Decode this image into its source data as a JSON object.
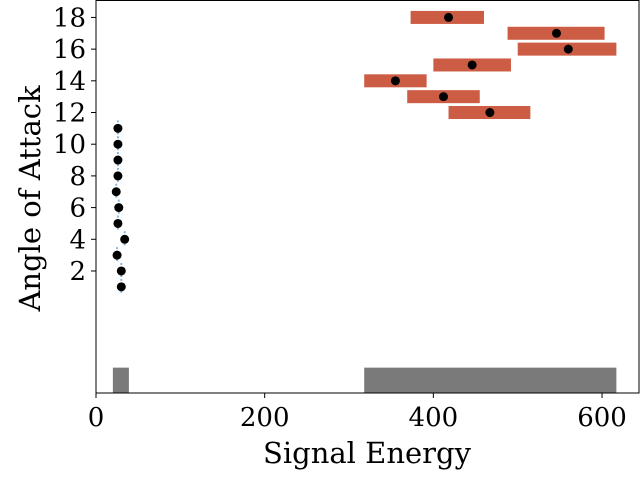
{
  "chart_data": {
    "type": "scatter",
    "xlabel": "Signal Energy",
    "ylabel": "Angle of Attack",
    "xlim": [
      0,
      645
    ],
    "ylim": [
      -5.7,
      19.1
    ],
    "xticks": [
      0,
      200,
      400,
      600
    ],
    "yticks": [
      2,
      4,
      6,
      8,
      10,
      12,
      14,
      16,
      18
    ],
    "grid": false,
    "legend": "none",
    "colors": {
      "interval": "#cd5c45",
      "point": "#000000",
      "error": "#87b6e0",
      "summary": "#7a7a7a"
    },
    "intervals": [
      {
        "y": 18,
        "xmin": 373,
        "xmax": 460,
        "x": 418
      },
      {
        "y": 17,
        "xmin": 488,
        "xmax": 603,
        "x": 546
      },
      {
        "y": 16,
        "xmin": 500,
        "xmax": 617,
        "x": 560
      },
      {
        "y": 15,
        "xmin": 400,
        "xmax": 492,
        "x": 446
      },
      {
        "y": 14,
        "xmin": 318,
        "xmax": 392,
        "x": 355
      },
      {
        "y": 13,
        "xmin": 369,
        "xmax": 455,
        "x": 412
      },
      {
        "y": 12,
        "xmin": 418,
        "xmax": 515,
        "x": 467
      }
    ],
    "left_points": [
      {
        "y": 11,
        "x": 26
      },
      {
        "y": 10,
        "x": 26
      },
      {
        "y": 9,
        "x": 26
      },
      {
        "y": 8,
        "x": 26
      },
      {
        "y": 7,
        "x": 24
      },
      {
        "y": 6,
        "x": 27
      },
      {
        "y": 5,
        "x": 26
      },
      {
        "y": 4,
        "x": 34
      },
      {
        "y": 3,
        "x": 25
      },
      {
        "y": 2,
        "x": 30
      },
      {
        "y": 1,
        "x": 30
      }
    ],
    "summary_bars": [
      {
        "xmin": 20,
        "xmax": 39,
        "ymin": -5.7,
        "ymax": -4.1
      },
      {
        "xmin": 318,
        "xmax": 617,
        "ymin": -5.7,
        "ymax": -4.1
      }
    ]
  }
}
